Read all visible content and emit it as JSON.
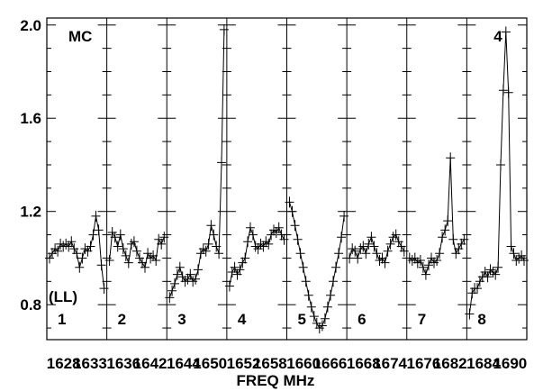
{
  "chart_data": {
    "type": "line",
    "source_label": "MC",
    "source_number": "4",
    "polarization": "(LL)",
    "xlabel": "FREQ MHz",
    "x_tick_labels": [
      "1628",
      "1633",
      "1636",
      "1642",
      "1644",
      "1650",
      "1652",
      "1658",
      "1660",
      "1666",
      "1668",
      "1674",
      "1676",
      "1682",
      "1684",
      "1690"
    ],
    "y_ticks": [
      0.8,
      1.2,
      1.6,
      2.0
    ],
    "y_tick_labels": [
      "0.8",
      "1.2",
      "1.6",
      "2.0"
    ],
    "ylim": [
      0.65,
      2.03
    ],
    "grid": false,
    "panels": [
      {
        "label": "1",
        "freq_range": [
          1628,
          1633
        ],
        "values": [
          1.0,
          1.02,
          1.04,
          1.03,
          1.06,
          1.05,
          1.06,
          1.05,
          1.07,
          1.04,
          1.02,
          0.96,
          1.0,
          1.04,
          1.03,
          1.05,
          1.1,
          1.18,
          1.12,
          0.97,
          0.87
        ]
      },
      {
        "label": "2",
        "freq_range": [
          1636,
          1642
        ],
        "values": [
          0.99,
          1.11,
          1.09,
          1.05,
          1.1,
          1.04,
          1.01,
          0.98,
          1.06,
          1.07,
          1.03,
          1.0,
          0.98,
          0.96,
          1.02,
          1.0,
          1.01,
          0.99,
          1.08,
          1.06,
          1.09
        ]
      },
      {
        "label": "3",
        "freq_range": [
          1644,
          1650
        ],
        "values": [
          0.83,
          0.86,
          0.89,
          0.93,
          0.96,
          0.92,
          0.9,
          0.91,
          0.93,
          0.9,
          0.91,
          0.95,
          1.02,
          1.04,
          1.03,
          1.06,
          1.14,
          1.1,
          1.05,
          1.02,
          1.41,
          1.98
        ]
      },
      {
        "label": "4",
        "freq_range": [
          1652,
          1658
        ],
        "values": [
          0.88,
          0.94,
          0.96,
          0.93,
          0.95,
          0.98,
          1.0,
          1.07,
          1.13,
          1.1,
          1.05,
          1.04,
          1.06,
          1.05,
          1.07,
          1.06,
          1.1,
          1.12,
          1.11,
          1.13,
          1.1,
          1.08
        ]
      },
      {
        "label": "5",
        "freq_range": [
          1660,
          1666
        ],
        "values": [
          1.24,
          1.2,
          1.14,
          1.08,
          1.02,
          0.96,
          0.9,
          0.84,
          0.79,
          0.75,
          0.72,
          0.7,
          0.71,
          0.74,
          0.79,
          0.84,
          0.9,
          0.96,
          1.02,
          1.09,
          1.18
        ]
      },
      {
        "label": "6",
        "freq_range": [
          1668,
          1674
        ],
        "values": [
          1.0,
          1.04,
          1.03,
          1.0,
          1.04,
          1.05,
          1.02,
          1.06,
          1.09,
          1.05,
          1.02,
          0.99,
          1.0,
          0.98,
          1.03,
          1.06,
          1.09,
          1.1,
          1.07,
          1.05,
          1.03
        ]
      },
      {
        "label": "7",
        "freq_range": [
          1676,
          1682
        ],
        "values": [
          1.0,
          0.99,
          1.0,
          0.98,
          0.99,
          0.96,
          0.93,
          0.97,
          1.0,
          0.98,
          0.99,
          1.02,
          1.09,
          1.12,
          1.16,
          1.43,
          1.08,
          1.02,
          1.04,
          1.06,
          1.08
        ]
      },
      {
        "label": "8",
        "freq_range": [
          1684,
          1690
        ],
        "values": [
          0.76,
          0.85,
          0.87,
          0.87,
          0.9,
          0.92,
          0.94,
          0.92,
          0.95,
          0.94,
          0.93,
          0.96,
          1.4,
          1.72,
          1.97,
          1.71,
          1.05,
          1.02,
          0.99,
          1.0,
          1.01,
          0.99
        ]
      }
    ]
  }
}
